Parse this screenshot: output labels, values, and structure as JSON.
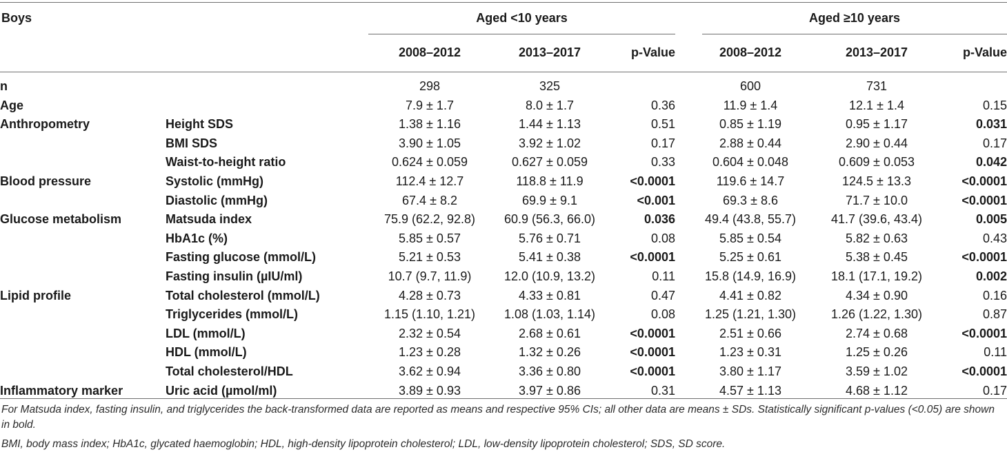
{
  "header": {
    "group": "Boys",
    "age_groups": [
      "Aged <10 years",
      "Aged ≥10 years"
    ],
    "columns": [
      "2008–2012",
      "2013–2017",
      "p-Value",
      "2008–2012",
      "2013–2017",
      "p-Value"
    ]
  },
  "rows": [
    {
      "category": "n",
      "variable": "",
      "values": [
        "298",
        "325",
        "",
        "600",
        "731",
        ""
      ],
      "bold_p": [
        false,
        false
      ]
    },
    {
      "category": "Age",
      "variable": "",
      "values": [
        "7.9 ± 1.7",
        "8.0 ± 1.7",
        "0.36",
        "11.9 ± 1.4",
        "12.1 ± 1.4",
        "0.15"
      ],
      "bold_p": [
        false,
        false
      ]
    },
    {
      "category": "Anthropometry",
      "variable": "Height SDS",
      "values": [
        "1.38 ± 1.16",
        "1.44 ± 1.13",
        "0.51",
        "0.85 ± 1.19",
        "0.95 ± 1.17",
        "0.031"
      ],
      "bold_p": [
        false,
        true
      ]
    },
    {
      "category": "",
      "variable": "BMI SDS",
      "values": [
        "3.90 ± 1.05",
        "3.92 ± 1.02",
        "0.17",
        "2.88 ± 0.44",
        "2.90 ± 0.44",
        "0.17"
      ],
      "bold_p": [
        false,
        false
      ]
    },
    {
      "category": "",
      "variable": "Waist-to-height ratio",
      "values": [
        "0.624 ± 0.059",
        "0.627 ± 0.059",
        "0.33",
        "0.604 ± 0.048",
        "0.609 ± 0.053",
        "0.042"
      ],
      "bold_p": [
        false,
        true
      ]
    },
    {
      "category": "Blood pressure",
      "variable": "Systolic (mmHg)",
      "values": [
        "112.4 ± 12.7",
        "118.8 ± 11.9",
        "<0.0001",
        "119.6 ± 14.7",
        "124.5 ± 13.3",
        "<0.0001"
      ],
      "bold_p": [
        true,
        true
      ]
    },
    {
      "category": "",
      "variable": "Diastolic (mmHg)",
      "values": [
        "67.4 ± 8.2",
        "69.9 ± 9.1",
        "<0.001",
        "69.3 ± 8.6",
        "71.7 ± 10.0",
        "<0.0001"
      ],
      "bold_p": [
        true,
        true
      ]
    },
    {
      "category": "Glucose metabolism",
      "variable": "Matsuda index",
      "values": [
        "75.9 (62.2, 92.8)",
        "60.9 (56.3, 66.0)",
        "0.036",
        "49.4 (43.8, 55.7)",
        "41.7 (39.6, 43.4)",
        "0.005"
      ],
      "bold_p": [
        true,
        true
      ]
    },
    {
      "category": "",
      "variable": "HbA1c (%)",
      "values": [
        "5.85 ± 0.57",
        "5.76 ± 0.71",
        "0.08",
        "5.85 ± 0.54",
        "5.82 ± 0.63",
        "0.43"
      ],
      "bold_p": [
        false,
        false
      ]
    },
    {
      "category": "",
      "variable": "Fasting glucose (mmol/L)",
      "values": [
        "5.21 ± 0.53",
        "5.41 ± 0.38",
        "<0.0001",
        "5.25 ± 0.61",
        "5.38 ± 0.45",
        "<0.0001"
      ],
      "bold_p": [
        true,
        true
      ]
    },
    {
      "category": "",
      "variable": "Fasting insulin (µIU/ml)",
      "values": [
        "10.7 (9.7, 11.9)",
        "12.0 (10.9, 13.2)",
        "0.11",
        "15.8 (14.9, 16.9)",
        "18.1 (17.1, 19.2)",
        "0.002"
      ],
      "bold_p": [
        false,
        true
      ]
    },
    {
      "category": "Lipid profile",
      "variable": "Total cholesterol (mmol/L)",
      "values": [
        "4.28 ± 0.73",
        "4.33 ± 0.81",
        "0.47",
        "4.41 ± 0.82",
        "4.34 ± 0.90",
        "0.16"
      ],
      "bold_p": [
        false,
        false
      ]
    },
    {
      "category": "",
      "variable": "Triglycerides (mmol/L)",
      "values": [
        "1.15 (1.10, 1.21)",
        "1.08 (1.03, 1.14)",
        "0.08",
        "1.25 (1.21, 1.30)",
        "1.26 (1.22, 1.30)",
        "0.87"
      ],
      "bold_p": [
        false,
        false
      ]
    },
    {
      "category": "",
      "variable": "LDL (mmol/L)",
      "values": [
        "2.32 ± 0.54",
        "2.68 ± 0.61",
        "<0.0001",
        "2.51 ± 0.66",
        "2.74 ± 0.68",
        "<0.0001"
      ],
      "bold_p": [
        true,
        true
      ]
    },
    {
      "category": "",
      "variable": "HDL (mmol/L)",
      "values": [
        "1.23 ± 0.28",
        "1.32 ± 0.26",
        "<0.0001",
        "1.23 ± 0.31",
        "1.25 ± 0.26",
        "0.11"
      ],
      "bold_p": [
        true,
        false
      ]
    },
    {
      "category": "",
      "variable": "Total cholesterol/HDL",
      "values": [
        "3.62 ± 0.94",
        "3.36 ± 0.80",
        "<0.0001",
        "3.80 ± 1.17",
        "3.59 ± 1.02",
        "<0.0001"
      ],
      "bold_p": [
        true,
        true
      ]
    },
    {
      "category": "Inflammatory marker",
      "variable": "Uric acid (µmol/ml)",
      "values": [
        "3.89 ± 0.93",
        "3.97 ± 0.86",
        "0.31",
        "4.57 ± 1.13",
        "4.68 ± 1.12",
        "0.17"
      ],
      "bold_p": [
        false,
        false
      ]
    }
  ],
  "footnotes": [
    "For Matsuda index, fasting insulin, and triglycerides the back-transformed data are reported as means and respective 95% CIs; all other data are means ± SDs. Statistically significant p-values (<0.05) are shown in bold.",
    "BMI, body mass index; HbA1c, glycated haemoglobin; HDL, high-density lipoprotein cholesterol; LDL, low-density lipoprotein cholesterol; SDS, SD score."
  ]
}
